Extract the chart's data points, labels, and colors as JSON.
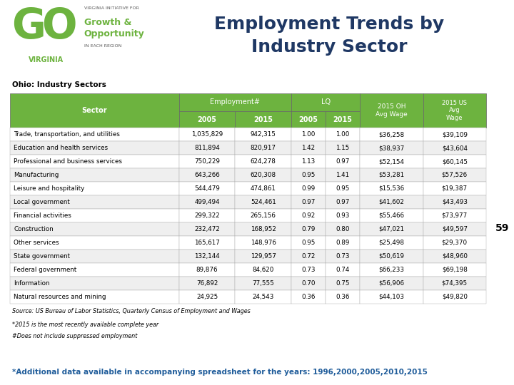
{
  "title": "Employment Trends by\nIndustry Sector",
  "title_color": "#1F3864",
  "table_label": "Ohio: Industry Sectors",
  "rows": [
    [
      "Trade, transportation, and utilities",
      "1,035,829",
      "942,315",
      "1.00",
      "1.00",
      "$36,258",
      "$39,109"
    ],
    [
      "Education and health services",
      "811,894",
      "820,917",
      "1.42",
      "1.15",
      "$38,937",
      "$43,604"
    ],
    [
      "Professional and business services",
      "750,229",
      "624,278",
      "1.13",
      "0.97",
      "$52,154",
      "$60,145"
    ],
    [
      "Manufacturing",
      "643,266",
      "620,308",
      "0.95",
      "1.41",
      "$53,281",
      "$57,526"
    ],
    [
      "Leisure and hospitality",
      "544,479",
      "474,861",
      "0.99",
      "0.95",
      "$15,536",
      "$19,387"
    ],
    [
      "Local government",
      "499,494",
      "524,461",
      "0.97",
      "0.97",
      "$41,602",
      "$43,493"
    ],
    [
      "Financial activities",
      "299,322",
      "265,156",
      "0.92",
      "0.93",
      "$55,466",
      "$73,977"
    ],
    [
      "Construction",
      "232,472",
      "168,952",
      "0.79",
      "0.80",
      "$47,021",
      "$49,597"
    ],
    [
      "Other services",
      "165,617",
      "148,976",
      "0.95",
      "0.89",
      "$25,498",
      "$29,370"
    ],
    [
      "State government",
      "132,144",
      "129,957",
      "0.72",
      "0.73",
      "$50,619",
      "$48,960"
    ],
    [
      "Federal government",
      "89,876",
      "84,620",
      "0.73",
      "0.74",
      "$66,233",
      "$69,198"
    ],
    [
      "Information",
      "76,892",
      "77,555",
      "0.70",
      "0.75",
      "$56,906",
      "$74,395"
    ],
    [
      "Natural resources and mining",
      "24,925",
      "24,543",
      "0.36",
      "0.36",
      "$44,103",
      "$49,820"
    ]
  ],
  "source_text": "Source: US Bureau of Labor Statistics, Quarterly Census of Employment and Wages",
  "footnote1": "*2015 is the most recently available complete year",
  "footnote2": "#Does not include suppressed employment",
  "bottom_text": "*Additional data available in accompanying spreadsheet for the years: 1996,2000,2005,2010,2015",
  "page_number": "59",
  "green_color": "#6DB33F",
  "green_dark": "#4A8C1C",
  "white_color": "#FFFFFF",
  "black_color": "#000000",
  "light_gray_color": "#EFEFEF",
  "bottom_text_color": "#1F5C9A",
  "sidebar_color": "#5AA320"
}
